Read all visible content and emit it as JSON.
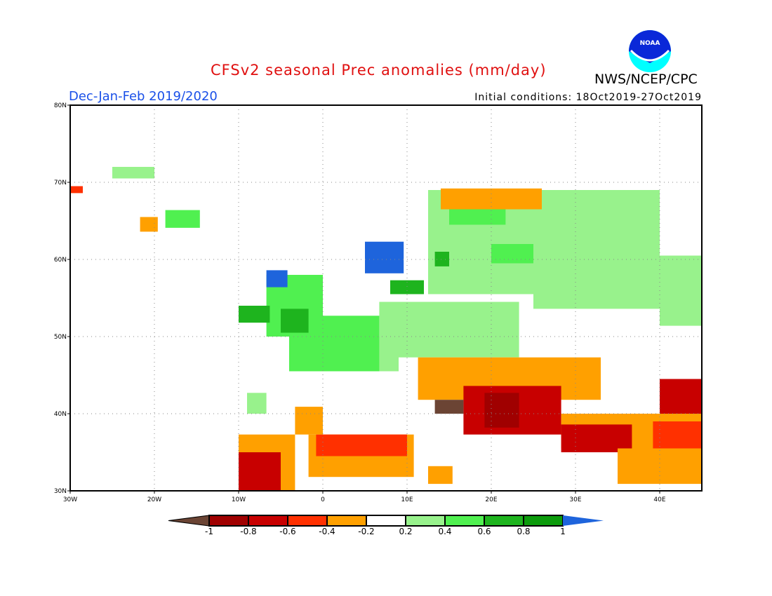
{
  "header": {
    "title": "CFSv2 seasonal Prec anomalies (mm/day)",
    "period": "Dec-Jan-Feb 2019/2020",
    "initial_conditions": "Initial conditions: 18Oct2019-27Oct2019",
    "organization": "NWS/NCEP/CPC",
    "logo_text": "NOAA"
  },
  "map": {
    "lon_range": [
      -30,
      45
    ],
    "lat_range": [
      30,
      80
    ],
    "lat_labels": [
      {
        "lat": 80,
        "label": "80N"
      },
      {
        "lat": 70,
        "label": "70N"
      },
      {
        "lat": 60,
        "label": "60N"
      },
      {
        "lat": 50,
        "label": "50N"
      },
      {
        "lat": 40,
        "label": "40N"
      },
      {
        "lat": 30,
        "label": "30N"
      }
    ],
    "lon_labels": [
      {
        "lon": -30,
        "label": "30W"
      },
      {
        "lon": -20,
        "label": "20W"
      },
      {
        "lon": -10,
        "label": "10W"
      },
      {
        "lon": 0,
        "label": "0"
      },
      {
        "lon": 10,
        "label": "10E"
      },
      {
        "lon": 20,
        "label": "20E"
      },
      {
        "lon": 30,
        "label": "30E"
      },
      {
        "lon": 40,
        "label": "40E"
      }
    ],
    "anomaly_patches": [
      {
        "lon": [
          12.5,
          25
        ],
        "lat": [
          55.5,
          69
        ],
        "v": 0.3
      },
      {
        "lon": [
          25,
          40
        ],
        "lat": [
          53.6,
          69
        ],
        "v": 0.3
      },
      {
        "lon": [
          40,
          45
        ],
        "lat": [
          51.4,
          60.5
        ],
        "v": 0.3
      },
      {
        "lon": [
          6.7,
          23.3
        ],
        "lat": [
          47.3,
          54.5
        ],
        "v": 0.3
      },
      {
        "lon": [
          2,
          9
        ],
        "lat": [
          45.5,
          50
        ],
        "v": 0.3
      },
      {
        "lon": [
          -4,
          6.7
        ],
        "lat": [
          45.5,
          52.7
        ],
        "v": 0.5
      },
      {
        "lon": [
          15,
          21.7
        ],
        "lat": [
          64.5,
          68
        ],
        "v": 0.5
      },
      {
        "lon": [
          20,
          25
        ],
        "lat": [
          59.5,
          62
        ],
        "v": 0.5
      },
      {
        "lon": [
          13.3,
          15
        ],
        "lat": [
          59.1,
          61
        ],
        "v": 0.7
      },
      {
        "lon": [
          -6.7,
          0
        ],
        "lat": [
          50,
          58
        ],
        "v": 0.5
      },
      {
        "lon": [
          -5,
          -1.7
        ],
        "lat": [
          50.5,
          53.6
        ],
        "v": 0.7
      },
      {
        "lon": [
          -10,
          -6.3
        ],
        "lat": [
          51.8,
          54
        ],
        "v": 0.7
      },
      {
        "lon": [
          8,
          12
        ],
        "lat": [
          55.5,
          57.3
        ],
        "v": 0.7
      },
      {
        "lon": [
          5,
          9.6
        ],
        "lat": [
          58.2,
          62.3
        ],
        "v": 1.1
      },
      {
        "lon": [
          -6.7,
          -4.2
        ],
        "lat": [
          56.4,
          58.6
        ],
        "v": 1.1
      },
      {
        "lon": [
          -18.7,
          -14.6
        ],
        "lat": [
          64.1,
          66.4
        ],
        "v": 0.5
      },
      {
        "lon": [
          -25,
          -20
        ],
        "lat": [
          70.5,
          72
        ],
        "v": 0.3
      },
      {
        "lon": [
          -21.7,
          -19.6
        ],
        "lat": [
          63.6,
          65.5
        ],
        "v": -0.3
      },
      {
        "lon": [
          -30,
          -28.5
        ],
        "lat": [
          68.6,
          69.5
        ],
        "v": -0.5
      },
      {
        "lon": [
          -9,
          -6.7
        ],
        "lat": [
          40,
          42.7
        ],
        "v": 0.3
      },
      {
        "lon": [
          14,
          26
        ],
        "lat": [
          66.5,
          69.2
        ],
        "v": -0.3
      },
      {
        "lon": [
          11.3,
          33
        ],
        "lat": [
          41.8,
          47.3
        ],
        "v": -0.3
      },
      {
        "lon": [
          16.7,
          28.3
        ],
        "lat": [
          37.3,
          43.6
        ],
        "v": -0.7
      },
      {
        "lon": [
          19.2,
          23.3
        ],
        "lat": [
          38.2,
          42.7
        ],
        "v": -0.9
      },
      {
        "lon": [
          13.3,
          16.7
        ],
        "lat": [
          40,
          41.8
        ],
        "v": -1.1
      },
      {
        "lon": [
          28.3,
          45
        ],
        "lat": [
          35.5,
          40
        ],
        "v": -0.3
      },
      {
        "lon": [
          28.3,
          36.7
        ],
        "lat": [
          35,
          38.6
        ],
        "v": -0.7
      },
      {
        "lon": [
          40,
          45
        ],
        "lat": [
          40,
          44.5
        ],
        "v": -0.7
      },
      {
        "lon": [
          39.2,
          45
        ],
        "lat": [
          35.5,
          39
        ],
        "v": -0.5
      },
      {
        "lon": [
          35,
          45
        ],
        "lat": [
          30.9,
          35.5
        ],
        "v": -0.3
      },
      {
        "lon": [
          -1.7,
          10.8
        ],
        "lat": [
          31.8,
          37.3
        ],
        "v": -0.3
      },
      {
        "lon": [
          -0.8,
          10
        ],
        "lat": [
          34.5,
          37.3
        ],
        "v": -0.6
      },
      {
        "lon": [
          -10,
          -3.3
        ],
        "lat": [
          30,
          37.3
        ],
        "v": -0.3
      },
      {
        "lon": [
          -10,
          -5
        ],
        "lat": [
          30,
          35
        ],
        "v": -0.7
      },
      {
        "lon": [
          -3.3,
          0
        ],
        "lat": [
          37.3,
          40.9
        ],
        "v": -0.3
      },
      {
        "lon": [
          12.5,
          15.4
        ],
        "lat": [
          30.9,
          33.2
        ],
        "v": -0.3
      }
    ]
  },
  "colorbar": {
    "labels": [
      "-1",
      "-0.8",
      "-0.6",
      "-0.4",
      "-0.2",
      "0.2",
      "0.4",
      "0.6",
      "0.8",
      "1"
    ],
    "colors": [
      "#6b4434",
      "#a00000",
      "#c80000",
      "#ff3000",
      "#ffa000",
      "#ffffff",
      "#98f28c",
      "#50f050",
      "#1eb41e",
      "#0c9b0c",
      "#1e64dc"
    ]
  }
}
